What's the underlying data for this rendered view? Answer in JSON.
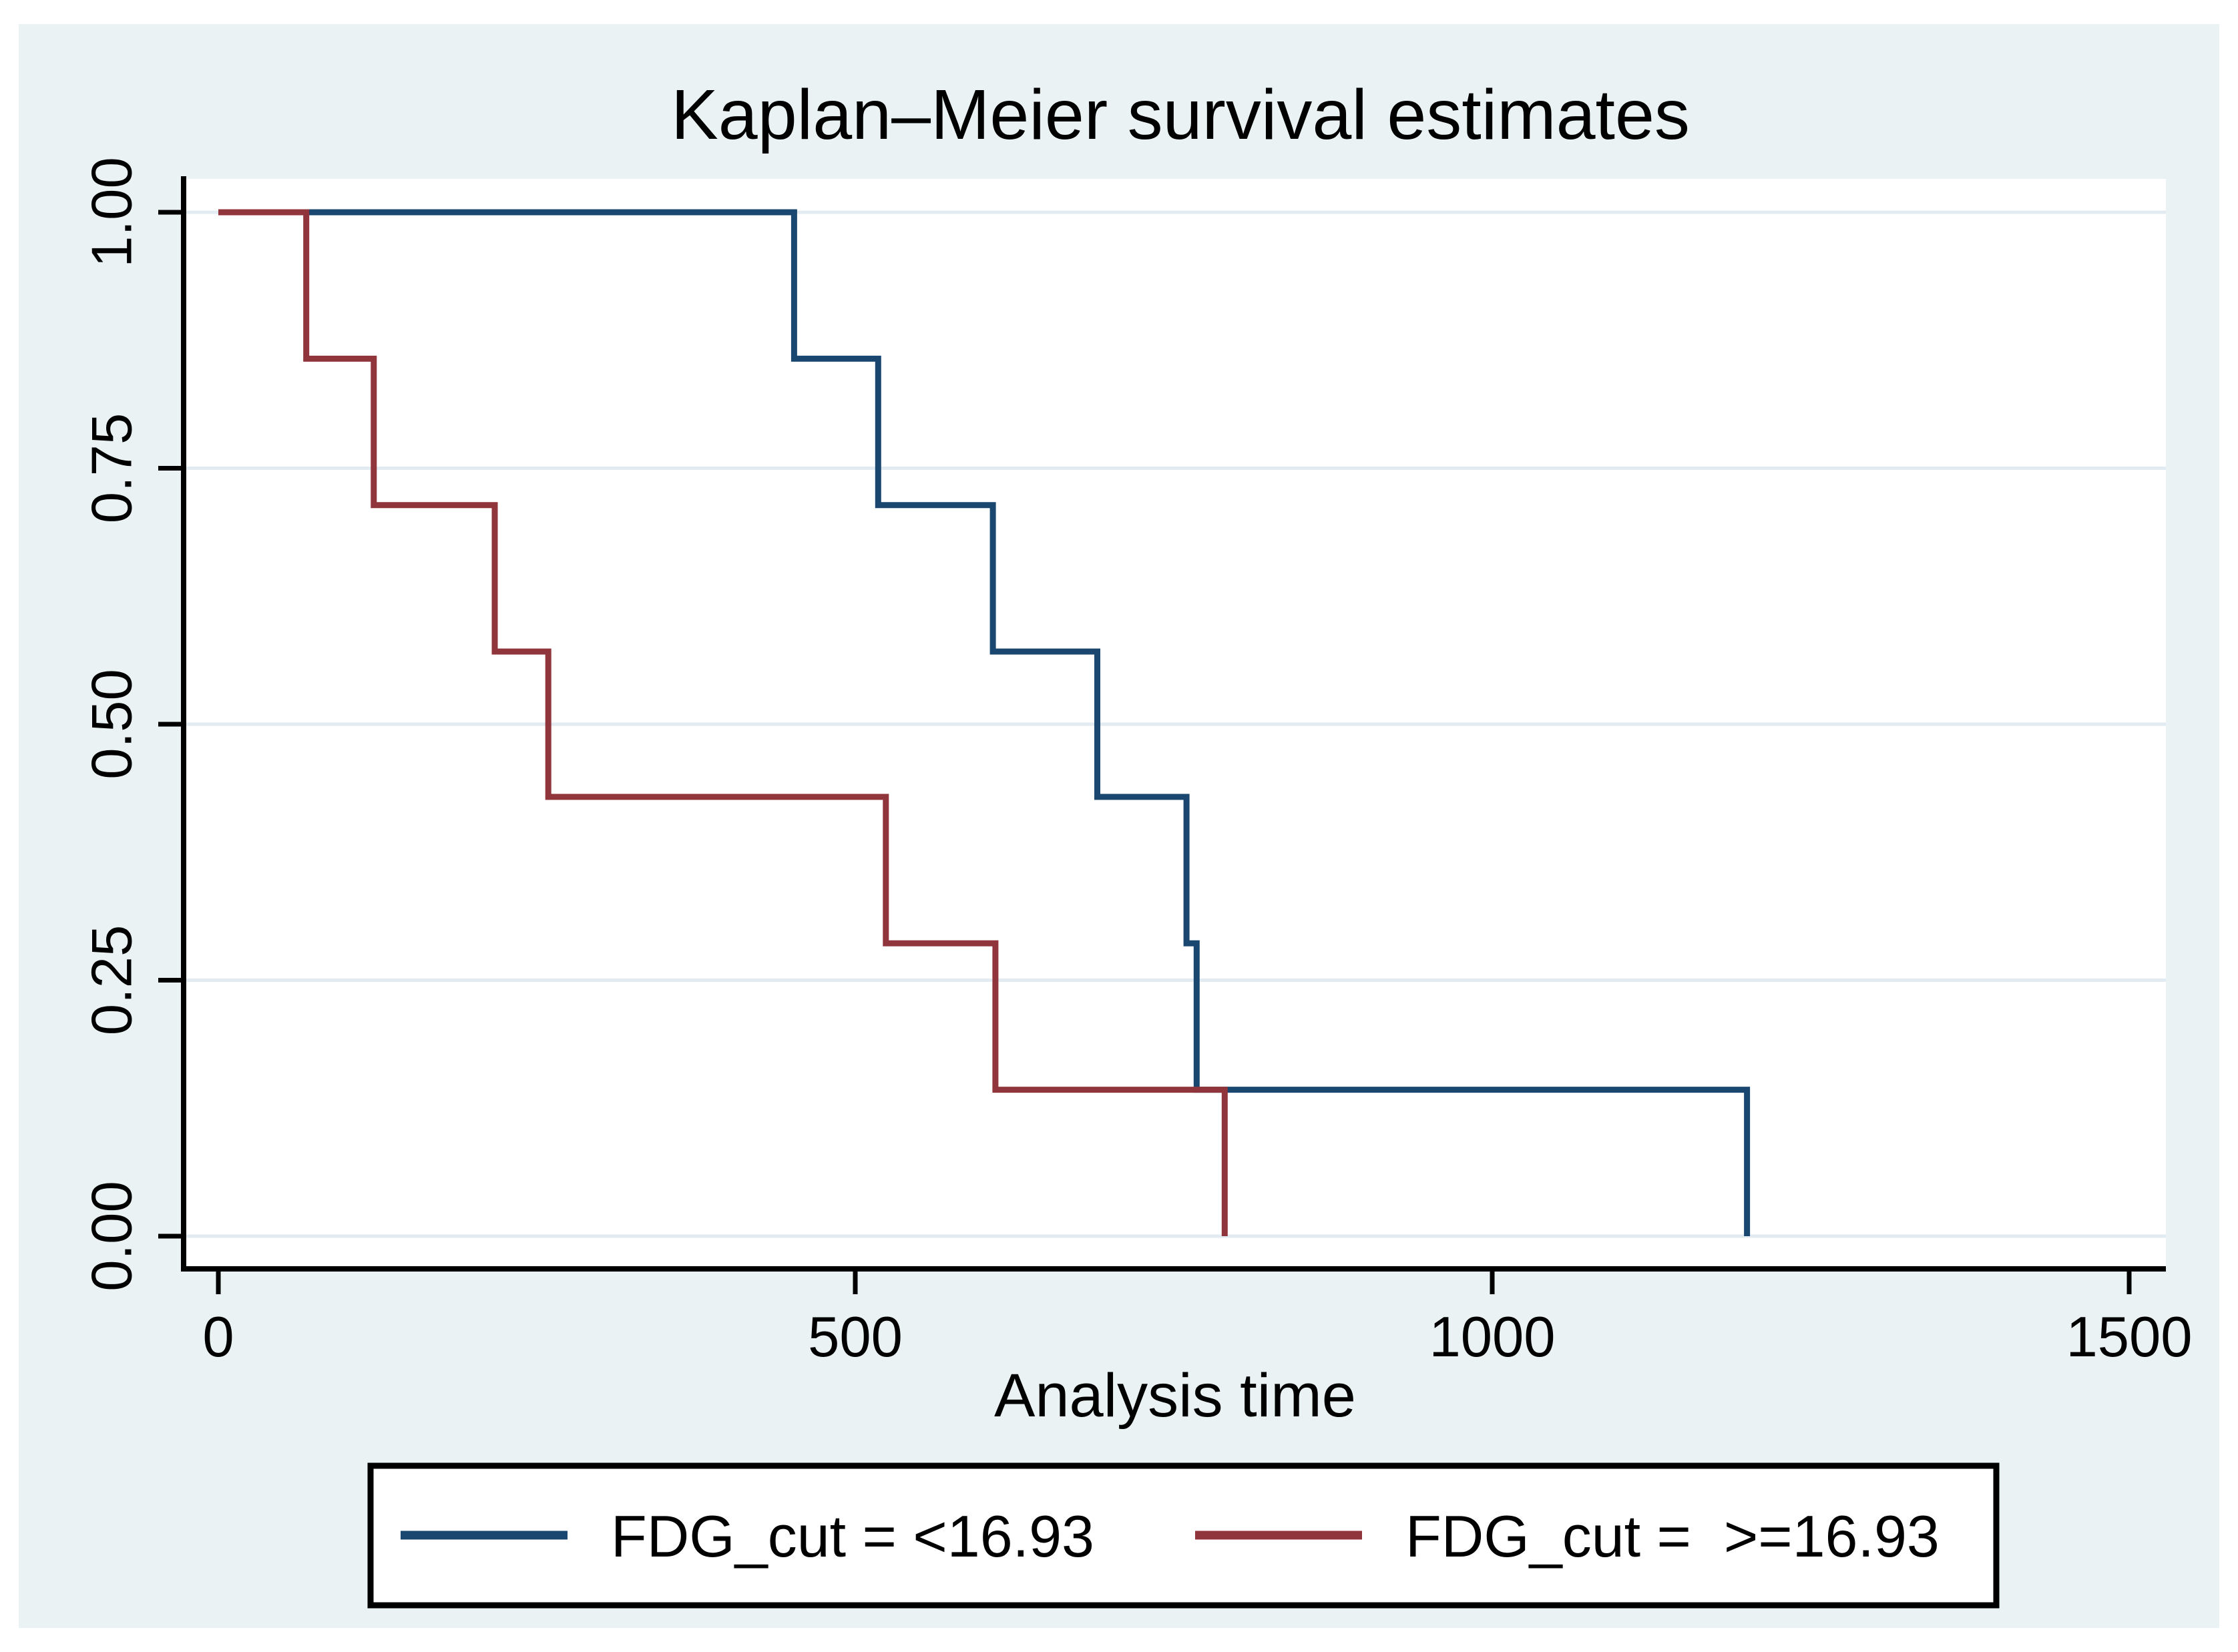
{
  "figure": {
    "title": "Kaplan–Meier survival estimates",
    "title_color": "#1E395B",
    "canvas_background": "#EAF2F3",
    "plot_background": "#FFFFFF",
    "grid_color": "#E2EBF1",
    "axis_color": "#000000"
  },
  "chart_data": {
    "type": "line",
    "subtype": "kaplan-meier-step-survival",
    "title": "Kaplan–Meier survival estimates",
    "xlabel": "Analysis time",
    "ylabel": "",
    "xlim": [
      0,
      1530
    ],
    "ylim": [
      0.0,
      1.0
    ],
    "grid": "horizontal",
    "legend_position": "bottom",
    "x_ticks": [
      {
        "value": 0,
        "label": "0"
      },
      {
        "value": 500,
        "label": "500"
      },
      {
        "value": 1000,
        "label": "1000"
      },
      {
        "value": 1500,
        "label": "1500"
      }
    ],
    "y_ticks": [
      {
        "value": 0.0,
        "label": "0.00"
      },
      {
        "value": 0.25,
        "label": "0.25"
      },
      {
        "value": 0.5,
        "label": "0.50"
      },
      {
        "value": 0.75,
        "label": "0.75"
      },
      {
        "value": 1.0,
        "label": "1.00"
      }
    ],
    "series": [
      {
        "name": "FDG_cut = <16.93",
        "color": "#1A476F",
        "points": [
          {
            "t": 0,
            "s": 1.0
          },
          {
            "t": 452,
            "s": 0.857
          },
          {
            "t": 518,
            "s": 0.714
          },
          {
            "t": 608,
            "s": 0.571
          },
          {
            "t": 690,
            "s": 0.429
          },
          {
            "t": 760,
            "s": 0.286
          },
          {
            "t": 768,
            "s": 0.143
          },
          {
            "t": 1200,
            "s": 0.0
          }
        ]
      },
      {
        "name": "FDG_cut =  >=16.93",
        "color": "#90353B",
        "points": [
          {
            "t": 0,
            "s": 1.0
          },
          {
            "t": 69,
            "s": 0.857
          },
          {
            "t": 122,
            "s": 0.714
          },
          {
            "t": 217,
            "s": 0.571
          },
          {
            "t": 259,
            "s": 0.429
          },
          {
            "t": 524,
            "s": 0.286
          },
          {
            "t": 610,
            "s": 0.143
          },
          {
            "t": 790,
            "s": 0.0
          }
        ]
      }
    ]
  },
  "legend": {
    "items": [
      {
        "label": "FDG_cut = <16.93",
        "color": "#1A476F"
      },
      {
        "label": "FDG_cut =  >=16.93",
        "color": "#90353B"
      }
    ]
  }
}
